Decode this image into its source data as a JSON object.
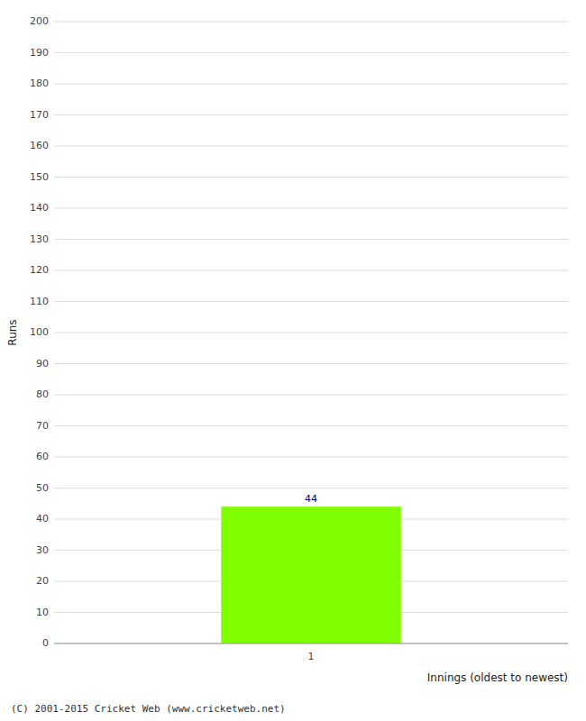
{
  "chart_data": {
    "type": "bar",
    "x_label": "Innings (oldest to newest)",
    "y_label": "Runs",
    "categories": [
      "1"
    ],
    "values": [
      44
    ],
    "color": "#7fff00",
    "ylim": [
      0,
      200
    ],
    "yticks": [
      0,
      10,
      20,
      30,
      40,
      50,
      60,
      70,
      80,
      90,
      100,
      110,
      120,
      130,
      140,
      150,
      160,
      170,
      180,
      190,
      200
    ],
    "grid": true,
    "data_labels": true,
    "annotations": [
      "(C) 2001-2015 Cricket Web (www.cricketweb.net)"
    ]
  }
}
